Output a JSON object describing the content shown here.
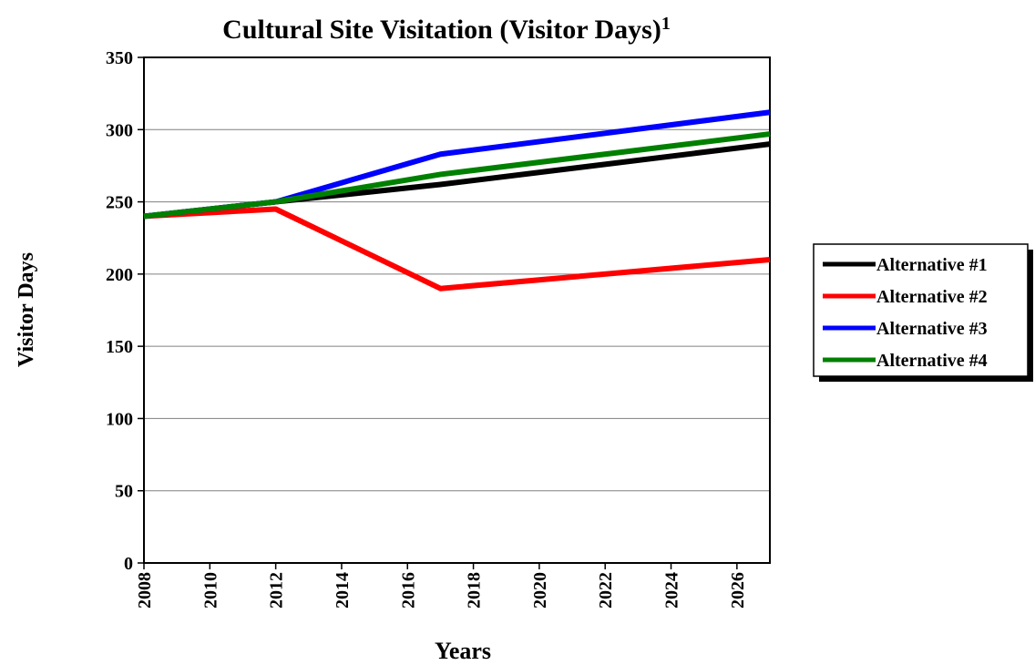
{
  "chart_data": {
    "type": "line",
    "title": "Cultural Site Visitation (Visitor Days)",
    "title_superscript": "1",
    "x_label": "Years",
    "y_label": "Visitor Days",
    "x": [
      2008,
      2012,
      2017,
      2027
    ],
    "series": [
      {
        "name": "Alternative #1",
        "color": "#000000",
        "values": [
          240,
          250,
          262,
          290
        ]
      },
      {
        "name": "Alternative #2",
        "color": "#ff0000",
        "values": [
          240,
          245,
          190,
          210
        ]
      },
      {
        "name": "Alternative #3",
        "color": "#0000ff",
        "values": [
          240,
          250,
          283,
          312
        ]
      },
      {
        "name": "Alternative #4",
        "color": "#008000",
        "values": [
          240,
          250,
          269,
          297
        ]
      }
    ],
    "xlim": [
      2008,
      2027
    ],
    "xticks": [
      2008,
      2010,
      2012,
      2014,
      2016,
      2018,
      2020,
      2022,
      2024,
      2026
    ],
    "ylim": [
      0,
      350
    ],
    "yticks": [
      0,
      50,
      100,
      150,
      200,
      250,
      300,
      350
    ],
    "grid": true,
    "legend": "right"
  }
}
